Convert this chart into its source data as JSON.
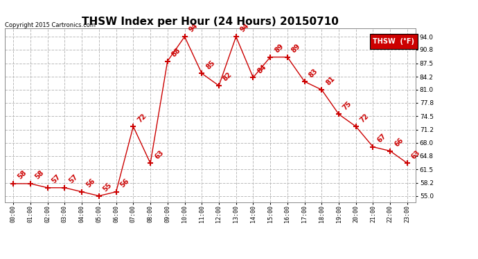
{
  "title": "THSW Index per Hour (24 Hours) 20150710",
  "copyright": "Copyright 2015 Cartronics.com",
  "legend_label": "THSW  (°F)",
  "hours": [
    0,
    1,
    2,
    3,
    4,
    5,
    6,
    7,
    8,
    9,
    10,
    11,
    12,
    13,
    14,
    15,
    16,
    17,
    18,
    19,
    20,
    21,
    22,
    23
  ],
  "values": [
    58,
    58,
    57,
    57,
    56,
    55,
    56,
    72,
    63,
    88,
    94,
    85,
    82,
    94,
    84,
    89,
    89,
    83,
    81,
    75,
    72,
    67,
    66,
    63
  ],
  "x_labels": [
    "00:00",
    "01:00",
    "02:00",
    "03:00",
    "04:00",
    "05:00",
    "06:00",
    "07:00",
    "08:00",
    "09:00",
    "10:00",
    "11:00",
    "12:00",
    "13:00",
    "14:00",
    "15:00",
    "16:00",
    "17:00",
    "18:00",
    "19:00",
    "20:00",
    "21:00",
    "22:00",
    "23:00"
  ],
  "y_ticks": [
    55.0,
    58.2,
    61.5,
    64.8,
    68.0,
    71.2,
    74.5,
    77.8,
    81.0,
    84.2,
    87.5,
    90.8,
    94.0
  ],
  "ylim": [
    53.5,
    96.0
  ],
  "xlim": [
    -0.5,
    23.5
  ],
  "line_color": "#cc0000",
  "marker_color": "#cc0000",
  "grid_color": "#bbbbbb",
  "background_color": "#ffffff",
  "title_fontsize": 11,
  "tick_fontsize": 6,
  "annotation_fontsize": 7,
  "legend_bg": "#cc0000",
  "legend_text_color": "#ffffff",
  "legend_fontsize": 7
}
